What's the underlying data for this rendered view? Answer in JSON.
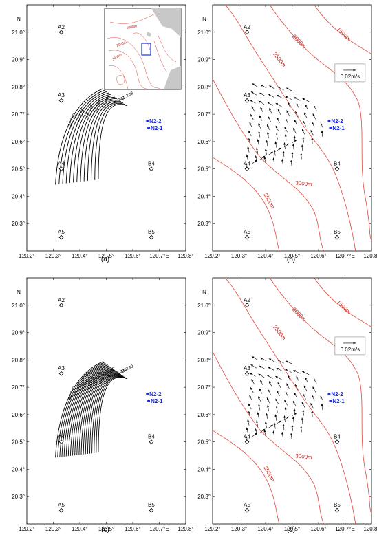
{
  "figure": {
    "axes": {
      "x_ticks": [
        "120.2°",
        "120.3°",
        "120.4°",
        "120.5°",
        "120.6°",
        "120.7°E",
        "120.8°"
      ],
      "y_ticks": [
        "21.0°",
        "20.9°",
        "20.8°",
        "20.7°",
        "20.6°",
        "20.5°",
        "20.4°",
        "20.3°"
      ],
      "y_axis_label": "N"
    },
    "stations": [
      {
        "name": "A2"
      },
      {
        "name": "A3"
      },
      {
        "name": "A4"
      },
      {
        "name": "A5"
      },
      {
        "name": "B4"
      },
      {
        "name": "B5"
      }
    ],
    "moorings": [
      {
        "name": "N2-2"
      },
      {
        "name": "N2-1"
      }
    ],
    "panels": [
      {
        "id": "a",
        "caption": "(a)",
        "type": "contour",
        "contour_labels": [
          "-12.708",
          "-12.712",
          "-12.716",
          "-12.720",
          "-12.724",
          "-12.728",
          "-12.732"
        ],
        "inset_labels": [
          "1000m",
          "2000m",
          "3000m"
        ]
      },
      {
        "id": "b",
        "caption": "(b)",
        "type": "vector",
        "isobath_labels": [
          "1500m",
          "2000m",
          "2500m",
          "3000m",
          "3500m"
        ],
        "scale_label": "0.02m/s"
      },
      {
        "id": "c",
        "caption": "(c)",
        "type": "contour",
        "contour_labels": [
          "-15.730",
          "-15.734",
          "-15.738",
          "-15.742",
          "-15.746",
          "-15.750",
          "-15.754",
          "-15.758",
          "-15.762"
        ]
      },
      {
        "id": "d",
        "caption": "(d)",
        "type": "vector",
        "isobath_labels": [
          "1500m",
          "2000m",
          "2500m",
          "3000m",
          "3500m"
        ],
        "scale_label": "0.02m/s"
      }
    ],
    "colors": {
      "isobath": "#e0483f",
      "mooring": "#1f2ee0",
      "land": "#c8c8c8"
    }
  }
}
